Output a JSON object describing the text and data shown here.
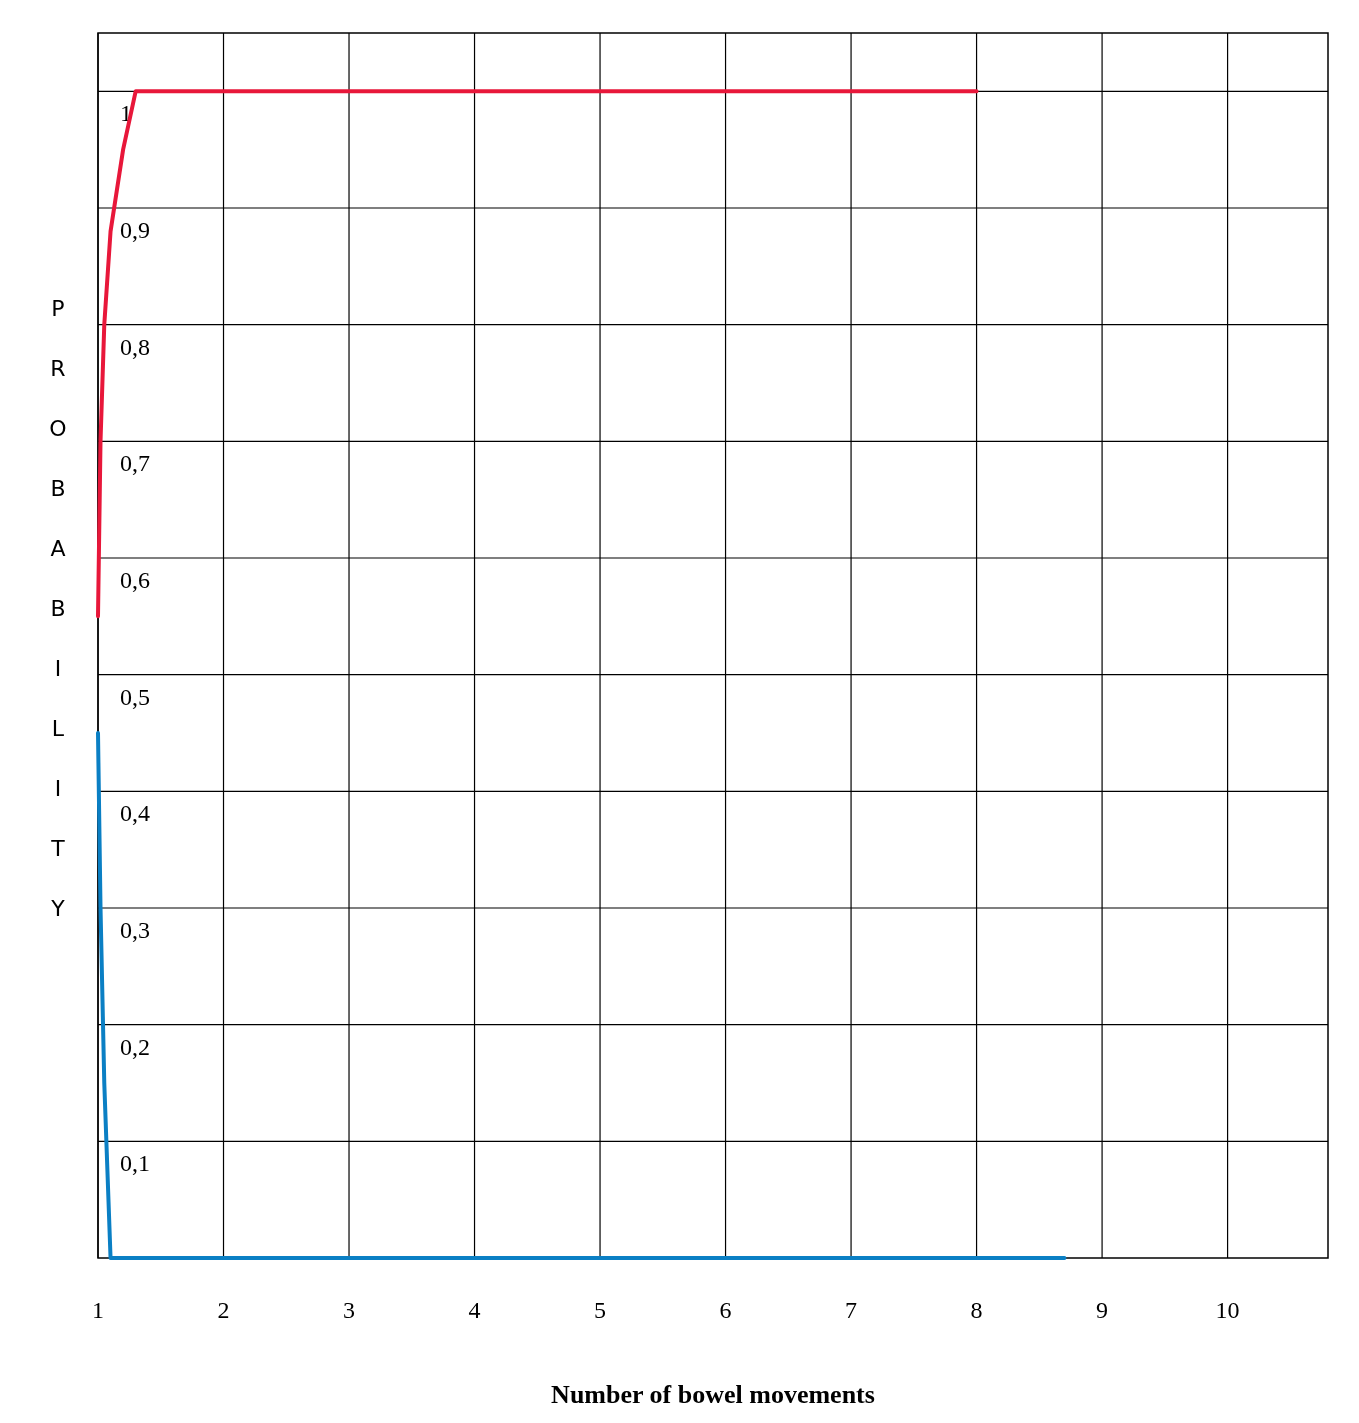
{
  "chart_data": {
    "type": "line",
    "xlabel": "Number of bowel movements",
    "ylabel": "PROBABILITY",
    "xlim": [
      1,
      10.8
    ],
    "xticks": [
      1,
      2,
      3,
      4,
      5,
      6,
      7,
      8,
      9,
      10
    ],
    "ylim": [
      0,
      1.05
    ],
    "yticks": [
      {
        "value": 0.1,
        "label": "0,1"
      },
      {
        "value": 0.2,
        "label": "0,2"
      },
      {
        "value": 0.3,
        "label": "0,3"
      },
      {
        "value": 0.4,
        "label": "0,4"
      },
      {
        "value": 0.5,
        "label": "0,5"
      },
      {
        "value": 0.6,
        "label": "0,6"
      },
      {
        "value": 0.7,
        "label": "0,7"
      },
      {
        "value": 0.8,
        "label": "0,8"
      },
      {
        "value": 0.9,
        "label": "0,9"
      },
      1
    ],
    "grid": true,
    "marker": "none",
    "line_style": "solid",
    "series": [
      {
        "color": "#e8173a",
        "x": [
          1,
          1.02,
          1.05,
          1.1,
          1.2,
          1.3,
          2,
          3,
          4,
          5,
          6,
          7,
          8
        ],
        "values": [
          0.55,
          0.7,
          0.8,
          0.88,
          0.95,
          1,
          1,
          1,
          1,
          1,
          1,
          1,
          1
        ]
      },
      {
        "color": "#0a7fc4",
        "x": [
          1,
          1.02,
          1.05,
          1.1,
          2,
          3,
          4,
          5,
          6,
          7,
          8,
          8.7
        ],
        "values": [
          0.45,
          0.3,
          0.15,
          0,
          0,
          0,
          0,
          0,
          0,
          0,
          0,
          0
        ]
      }
    ]
  }
}
